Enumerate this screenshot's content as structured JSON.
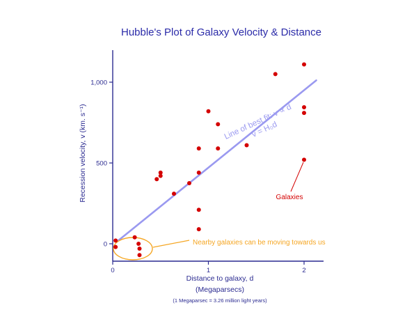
{
  "chart_data": {
    "type": "scatter",
    "title": "Hubble's Plot of Galaxy Velocity & Distance",
    "xlabel": "Distance to galaxy, d",
    "xlabel_unit": "(Megaparsecs)",
    "xlabel_note": "(1 Megaparsec = 3.26 million light years)",
    "ylabel": "Recession velocity, v (km. s⁻¹)",
    "xlim": [
      0,
      2.2
    ],
    "ylim": [
      -100,
      1200
    ],
    "x_ticks": [
      {
        "value": 0,
        "label": "0"
      },
      {
        "value": 1,
        "label": "1"
      },
      {
        "value": 2,
        "label": "2"
      }
    ],
    "y_ticks": [
      {
        "value": 0,
        "label": "0"
      },
      {
        "value": 500,
        "label": "500"
      },
      {
        "value": 1000,
        "label": "1,000"
      }
    ],
    "grid": false,
    "series": [
      {
        "name": "Galaxies",
        "color": "#d40000",
        "points": [
          {
            "x": 0.03,
            "y": 20
          },
          {
            "x": 0.03,
            "y": -20
          },
          {
            "x": 0.23,
            "y": 40
          },
          {
            "x": 0.27,
            "y": 0
          },
          {
            "x": 0.28,
            "y": -30
          },
          {
            "x": 0.28,
            "y": -70
          },
          {
            "x": 0.46,
            "y": 400
          },
          {
            "x": 0.5,
            "y": 420
          },
          {
            "x": 0.5,
            "y": 440
          },
          {
            "x": 0.64,
            "y": 310
          },
          {
            "x": 0.8,
            "y": 375
          },
          {
            "x": 0.9,
            "y": 590
          },
          {
            "x": 0.9,
            "y": 440
          },
          {
            "x": 0.9,
            "y": 210
          },
          {
            "x": 0.9,
            "y": 90
          },
          {
            "x": 1.0,
            "y": 820
          },
          {
            "x": 1.1,
            "y": 740
          },
          {
            "x": 1.1,
            "y": 590
          },
          {
            "x": 1.4,
            "y": 610
          },
          {
            "x": 1.7,
            "y": 1050
          },
          {
            "x": 2.0,
            "y": 1110
          },
          {
            "x": 2.0,
            "y": 845
          },
          {
            "x": 2.0,
            "y": 810
          },
          {
            "x": 2.0,
            "y": 520
          }
        ]
      }
    ],
    "fit_line": {
      "label_line1": "Line of best fit: v ∝ d",
      "label_line2": "v = H₀d",
      "color": "#9a99f0",
      "x": [
        0,
        2.2
      ],
      "y": [
        0,
        1020
      ]
    },
    "annotations": {
      "galaxies_label": "Galaxies",
      "galaxies_color": "#d40000",
      "nearby_label": "Nearby galaxies can be moving towards us",
      "nearby_color": "#f5a623"
    },
    "title_color": "#2a2aa8",
    "axis_text_color": "#2a2a90"
  }
}
